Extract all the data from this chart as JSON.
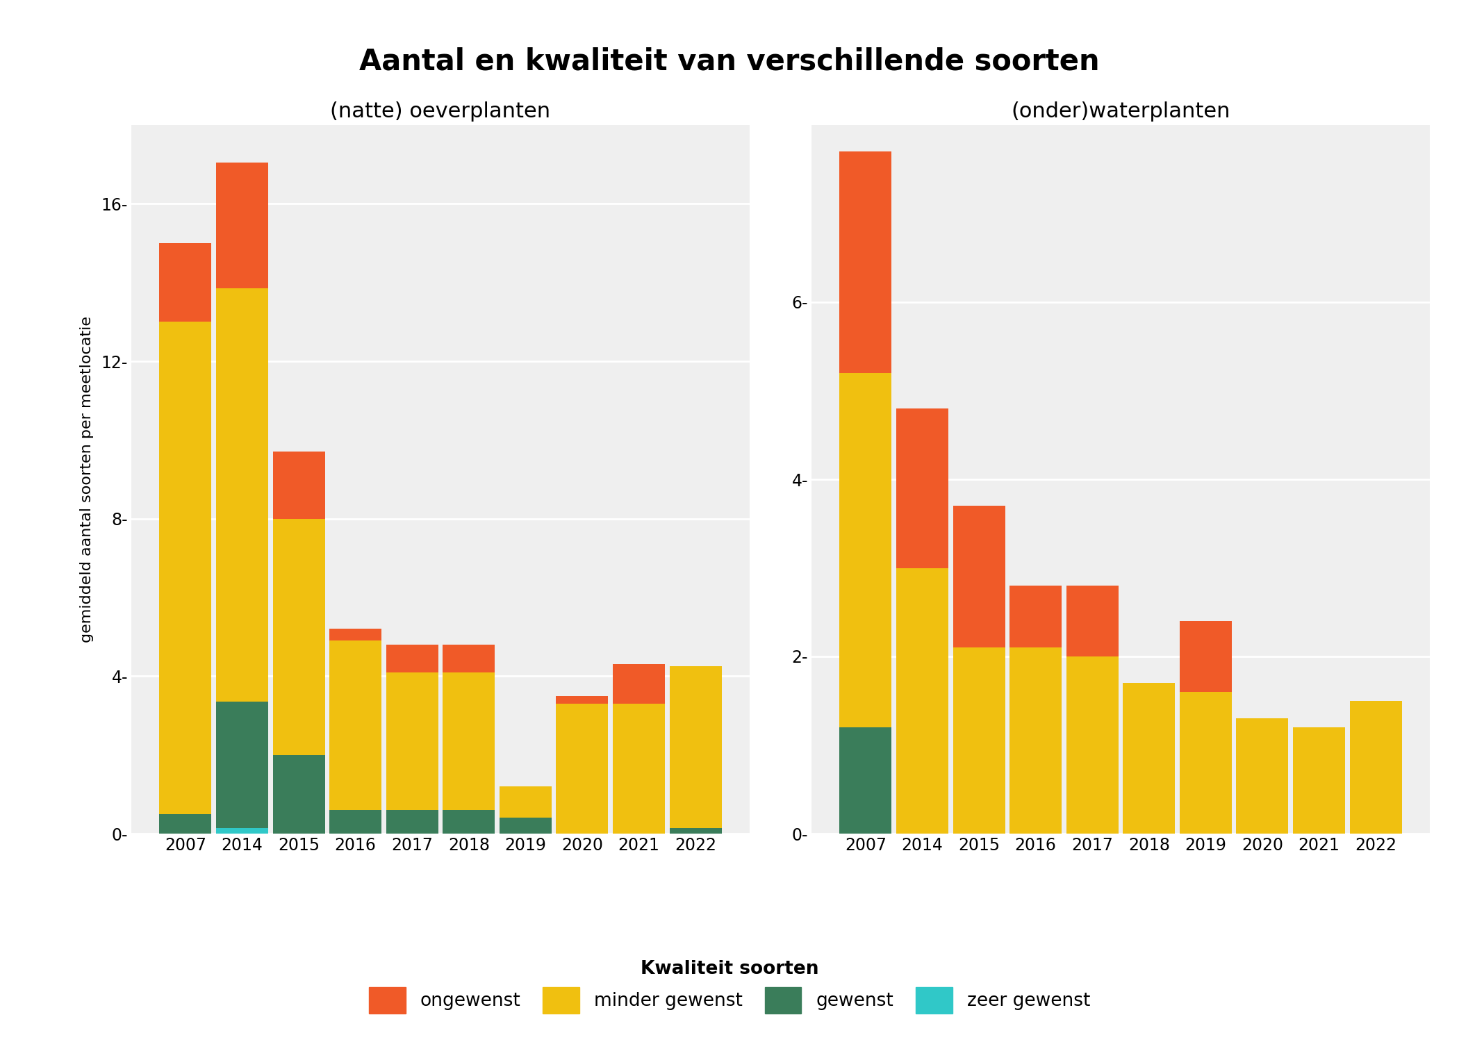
{
  "title": "Aantal en kwaliteit van verschillende soorten",
  "subtitle_left": "(natte) oeverplanten",
  "subtitle_right": "(onder)waterplanten",
  "ylabel": "gemiddeld aantal soorten per meetlocatie",
  "years": [
    "2007",
    "2014",
    "2015",
    "2016",
    "2017",
    "2018",
    "2019",
    "2020",
    "2021",
    "2022"
  ],
  "left": {
    "zeer_gewenst": [
      0.0,
      0.15,
      0.0,
      0.0,
      0.0,
      0.0,
      0.0,
      0.0,
      0.0,
      0.0
    ],
    "gewenst": [
      0.5,
      3.2,
      2.0,
      0.6,
      0.6,
      0.6,
      0.4,
      0.0,
      0.0,
      0.15
    ],
    "minder_gewenst": [
      12.5,
      10.5,
      6.0,
      4.3,
      3.5,
      3.5,
      0.8,
      3.3,
      3.3,
      4.1
    ],
    "ongewenst": [
      2.0,
      3.2,
      1.7,
      0.3,
      0.7,
      0.7,
      0.0,
      0.2,
      1.0,
      0.0
    ]
  },
  "right": {
    "zeer_gewenst": [
      0.0,
      0.0,
      0.0,
      0.0,
      0.0,
      0.0,
      0.0,
      0.0,
      0.0,
      0.0
    ],
    "gewenst": [
      1.2,
      0.0,
      0.0,
      0.0,
      0.0,
      0.0,
      0.0,
      0.0,
      0.0,
      0.0
    ],
    "minder_gewenst": [
      4.0,
      3.0,
      2.1,
      2.1,
      2.0,
      1.7,
      1.6,
      1.3,
      1.2,
      1.5
    ],
    "ongewenst": [
      2.5,
      1.8,
      1.6,
      0.7,
      0.8,
      0.0,
      0.8,
      0.0,
      0.0,
      0.0
    ]
  },
  "colors": {
    "ongewenst": "#F05A28",
    "minder_gewenst": "#F0C010",
    "gewenst": "#3A7D5A",
    "zeer_gewenst": "#30C8C8"
  },
  "legend_labels": {
    "ongewenst": "ongewenst",
    "minder_gewenst": "minder gewenst",
    "gewenst": "gewenst",
    "zeer_gewenst": "zeer gewenst"
  },
  "legend_title": "Kwaliteit soorten",
  "background_color": "#FFFFFF",
  "panel_background": "#EFEFEF",
  "grid_color": "#FFFFFF",
  "left_yticks": [
    0,
    4,
    8,
    12,
    16
  ],
  "right_yticks": [
    0,
    2,
    4,
    6
  ],
  "left_ylim": [
    0,
    18
  ],
  "right_ylim": [
    0,
    8.0
  ]
}
